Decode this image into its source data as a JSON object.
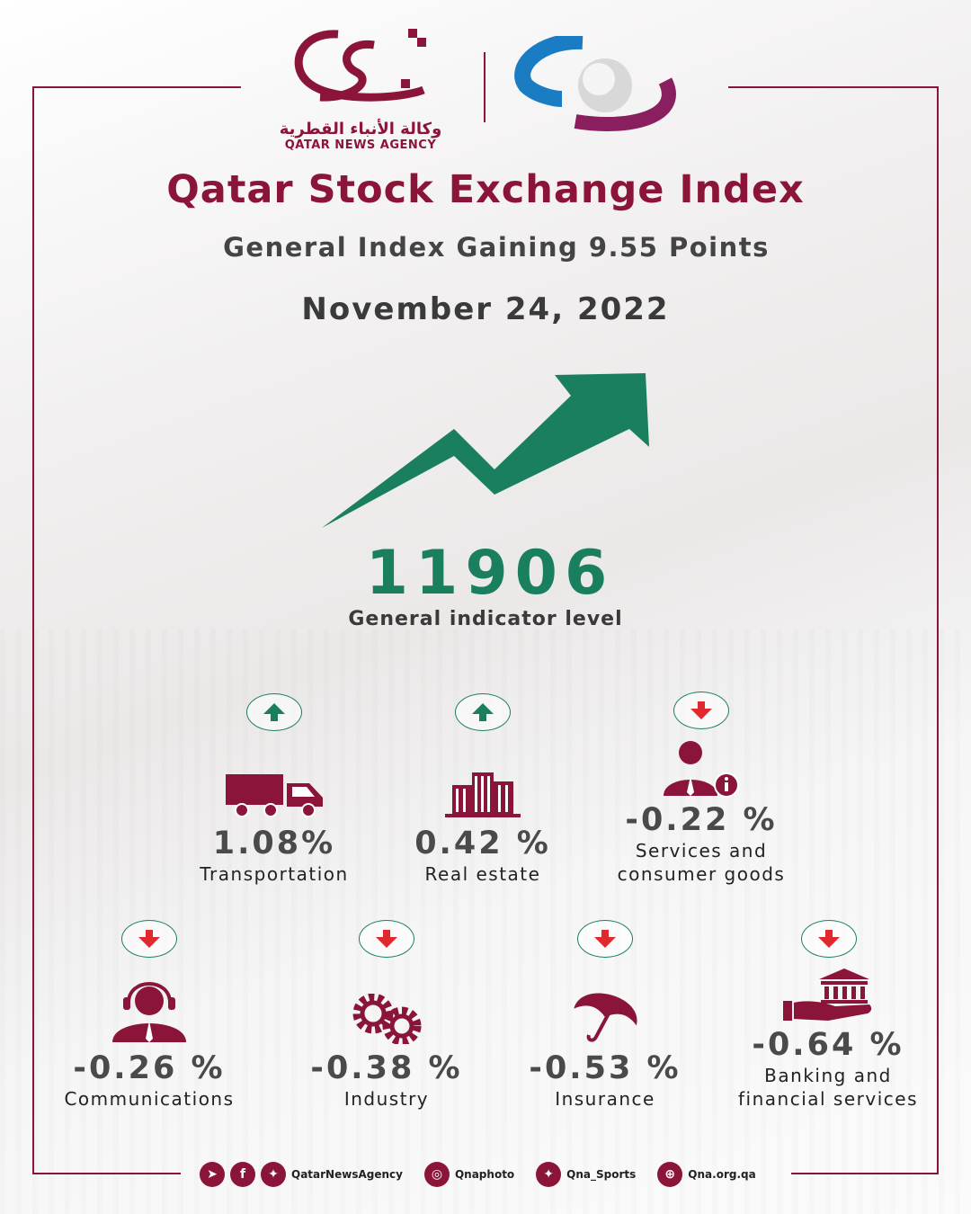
{
  "header": {
    "logo_arabic": "وكالة الأنباء القطرية",
    "logo_english": "QATAR NEWS AGENCY"
  },
  "title": "Qatar Stock Exchange Index",
  "subtitle": "General Index Gaining 9.55 Points",
  "date": "November 24, 2022",
  "index": {
    "value": "11906",
    "label": "General indicator level",
    "trend": "up"
  },
  "colors": {
    "brand": "#8a1538",
    "up": "#1a7f5f",
    "down": "#e0282e"
  },
  "sectors": [
    {
      "label": "Transportation",
      "value": "1.08%",
      "trend": "up",
      "icon": "truck-icon"
    },
    {
      "label": "Real estate",
      "value": "0.42 %",
      "trend": "up",
      "icon": "building-icon"
    },
    {
      "label": "Services and",
      "label2": "consumer goods",
      "value": "-0.22 %",
      "trend": "down",
      "icon": "service-agent-icon"
    },
    {
      "label": "Communications",
      "value": "-0.26 %",
      "trend": "down",
      "icon": "headset-icon"
    },
    {
      "label": "Industry",
      "value": "-0.38 %",
      "trend": "down",
      "icon": "gears-icon"
    },
    {
      "label": "Insurance",
      "value": "-0.53 %",
      "trend": "down",
      "icon": "umbrella-icon"
    },
    {
      "label": "Banking and",
      "label2": "financial services",
      "value": "-0.64 %",
      "trend": "down",
      "icon": "bank-hand-icon"
    }
  ],
  "footer": {
    "handle_main": "QatarNewsAgency",
    "handle_photo": "Qnaphoto",
    "handle_sports": "Qna_Sports",
    "website": "Qna.org.qa"
  }
}
